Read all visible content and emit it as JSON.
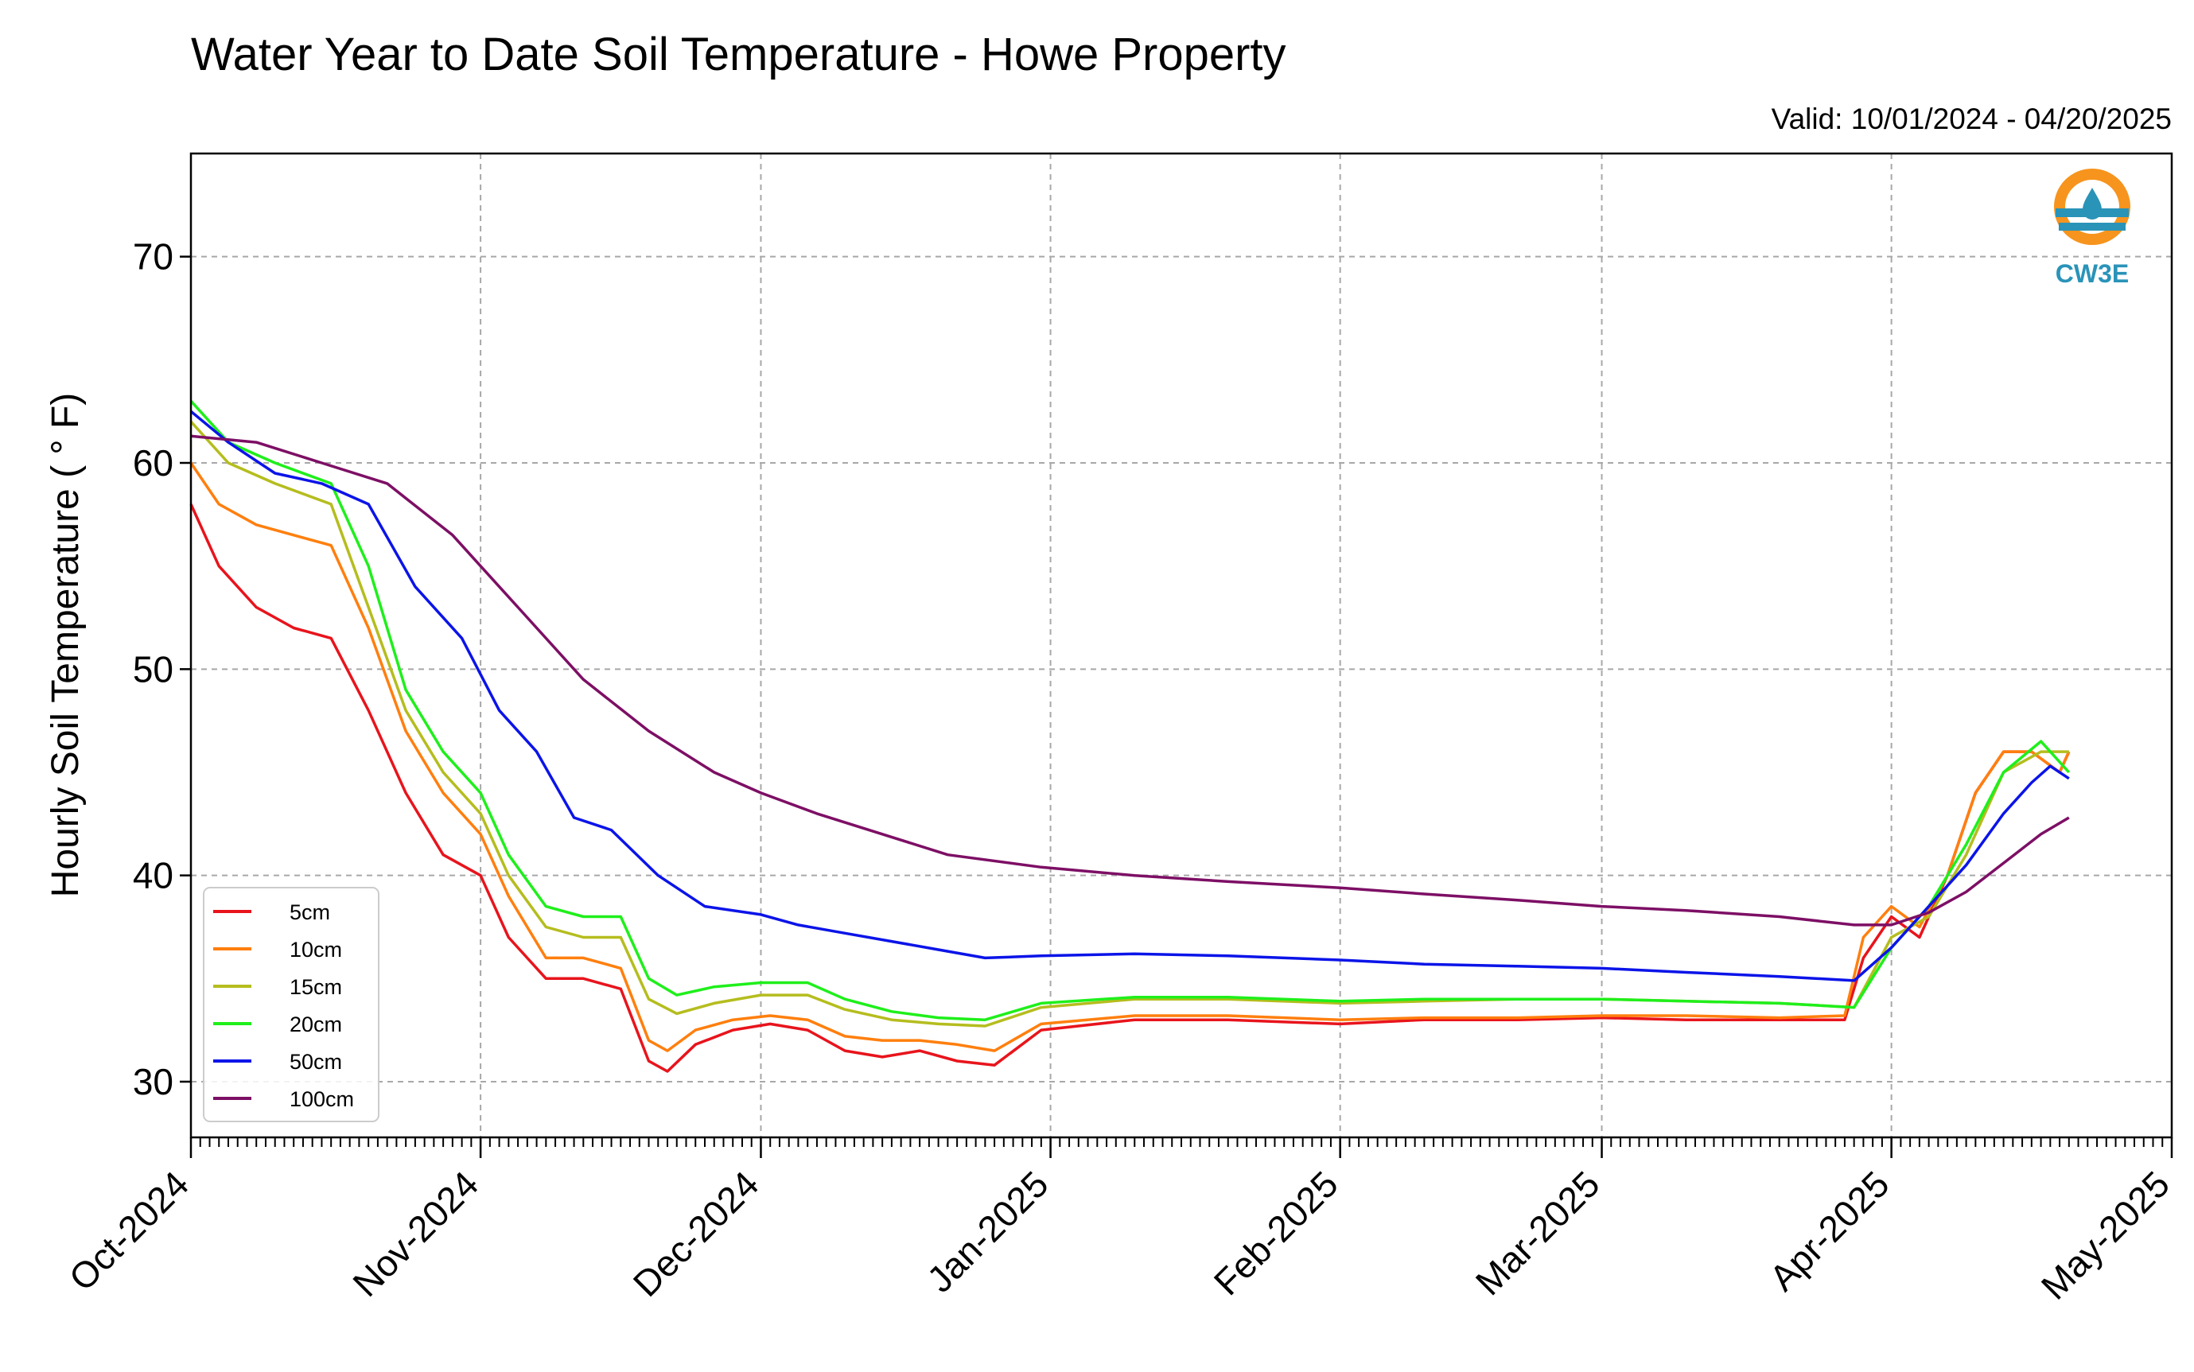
{
  "chart_data": {
    "type": "line",
    "title": "Water Year to Date Soil Temperature - Howe Property",
    "subtitle": "Valid: 10/01/2024 - 04/20/2025",
    "xlabel": "",
    "ylabel": "Hourly Soil Temperature ( ° F)",
    "logo_text": "CW3E",
    "x_ticks": [
      "Oct-2024",
      "Nov-2024",
      "Dec-2024",
      "Jan-2025",
      "Feb-2025",
      "Mar-2025",
      "Apr-2025",
      "May-2025"
    ],
    "y_ticks": [
      30,
      40,
      50,
      60,
      70
    ],
    "xlim": [
      "2024-10-01",
      "2025-05-01"
    ],
    "ylim": [
      27.3,
      75
    ],
    "grid": true,
    "legend_position": "lower-left",
    "series": [
      {
        "name": "5cm",
        "color": "#e8141c",
        "x": [
          "2024-10-01",
          "2024-10-04",
          "2024-10-08",
          "2024-10-12",
          "2024-10-16",
          "2024-10-20",
          "2024-10-24",
          "2024-10-28",
          "2024-11-01",
          "2024-11-04",
          "2024-11-08",
          "2024-11-12",
          "2024-11-16",
          "2024-11-19",
          "2024-11-21",
          "2024-11-24",
          "2024-11-28",
          "2024-12-02",
          "2024-12-06",
          "2024-12-10",
          "2024-12-14",
          "2024-12-18",
          "2024-12-22",
          "2024-12-26",
          "2024-12-31",
          "2025-01-10",
          "2025-01-20",
          "2025-02-01",
          "2025-02-10",
          "2025-02-20",
          "2025-03-01",
          "2025-03-10",
          "2025-03-20",
          "2025-03-27",
          "2025-03-29",
          "2025-04-01",
          "2025-04-04",
          "2025-04-07",
          "2025-04-10",
          "2025-04-13",
          "2025-04-16",
          "2025-04-19",
          "2025-04-20"
        ],
        "y": [
          58,
          55,
          53,
          52,
          51.5,
          48,
          44,
          41,
          40,
          37,
          35,
          35,
          34.5,
          31,
          30.5,
          31.8,
          32.5,
          32.8,
          32.5,
          31.5,
          31.2,
          31.5,
          31,
          30.8,
          32.5,
          33,
          33,
          32.8,
          33,
          33,
          33.1,
          33,
          33,
          33,
          36,
          38,
          37,
          40,
          44,
          46,
          46,
          45,
          46
        ]
      },
      {
        "name": "10cm",
        "color": "#ff7f0e",
        "x": [
          "2024-10-01",
          "2024-10-04",
          "2024-10-08",
          "2024-10-12",
          "2024-10-16",
          "2024-10-20",
          "2024-10-24",
          "2024-10-28",
          "2024-11-01",
          "2024-11-04",
          "2024-11-08",
          "2024-11-12",
          "2024-11-16",
          "2024-11-19",
          "2024-11-21",
          "2024-11-24",
          "2024-11-28",
          "2024-12-02",
          "2024-12-06",
          "2024-12-10",
          "2024-12-14",
          "2024-12-18",
          "2024-12-22",
          "2024-12-26",
          "2024-12-31",
          "2025-01-10",
          "2025-01-20",
          "2025-02-01",
          "2025-02-10",
          "2025-02-20",
          "2025-03-01",
          "2025-03-10",
          "2025-03-20",
          "2025-03-27",
          "2025-03-29",
          "2025-04-01",
          "2025-04-04",
          "2025-04-07",
          "2025-04-10",
          "2025-04-13",
          "2025-04-16",
          "2025-04-19",
          "2025-04-20"
        ],
        "y": [
          60,
          58,
          57,
          56.5,
          56,
          52,
          47,
          44,
          42,
          39,
          36,
          36,
          35.5,
          32,
          31.5,
          32.5,
          33,
          33.2,
          33,
          32.2,
          32,
          32,
          31.8,
          31.5,
          32.8,
          33.2,
          33.2,
          33,
          33.1,
          33.1,
          33.2,
          33.2,
          33.1,
          33.2,
          37,
          38.5,
          37.5,
          40,
          44,
          46,
          46,
          45,
          46
        ]
      },
      {
        "name": "15cm",
        "color": "#b5bd1e",
        "x": [
          "2024-10-01",
          "2024-10-05",
          "2024-10-10",
          "2024-10-16",
          "2024-10-20",
          "2024-10-24",
          "2024-10-28",
          "2024-11-01",
          "2024-11-04",
          "2024-11-08",
          "2024-11-12",
          "2024-11-16",
          "2024-11-19",
          "2024-11-22",
          "2024-11-26",
          "2024-12-01",
          "2024-12-06",
          "2024-12-10",
          "2024-12-15",
          "2024-12-20",
          "2024-12-25",
          "2024-12-31",
          "2025-01-10",
          "2025-01-20",
          "2025-02-01",
          "2025-02-10",
          "2025-02-20",
          "2025-03-01",
          "2025-03-10",
          "2025-03-20",
          "2025-03-28",
          "2025-04-01",
          "2025-04-05",
          "2025-04-09",
          "2025-04-13",
          "2025-04-17",
          "2025-04-20"
        ],
        "y": [
          62,
          60,
          59,
          58,
          53,
          48,
          45,
          43,
          40,
          37.5,
          37,
          37,
          34,
          33.3,
          33.8,
          34.2,
          34.2,
          33.5,
          33,
          32.8,
          32.7,
          33.6,
          34,
          34,
          33.8,
          33.9,
          34,
          34,
          33.9,
          33.8,
          33.6,
          37,
          38,
          41,
          45,
          46,
          46
        ]
      },
      {
        "name": "20cm",
        "color": "#1fef1b",
        "x": [
          "2024-10-01",
          "2024-10-05",
          "2024-10-10",
          "2024-10-16",
          "2024-10-20",
          "2024-10-24",
          "2024-10-28",
          "2024-11-01",
          "2024-11-04",
          "2024-11-08",
          "2024-11-12",
          "2024-11-16",
          "2024-11-19",
          "2024-11-22",
          "2024-11-26",
          "2024-12-01",
          "2024-12-06",
          "2024-12-10",
          "2024-12-15",
          "2024-12-20",
          "2024-12-25",
          "2024-12-31",
          "2025-01-10",
          "2025-01-20",
          "2025-02-01",
          "2025-02-10",
          "2025-02-20",
          "2025-03-01",
          "2025-03-10",
          "2025-03-20",
          "2025-03-28",
          "2025-04-01",
          "2025-04-05",
          "2025-04-09",
          "2025-04-13",
          "2025-04-17",
          "2025-04-20"
        ],
        "y": [
          63,
          61,
          60,
          59,
          55,
          49,
          46,
          44,
          41,
          38.5,
          38,
          38,
          35,
          34.2,
          34.6,
          34.8,
          34.8,
          34,
          33.4,
          33.1,
          33,
          33.8,
          34.1,
          34.1,
          33.9,
          34,
          34,
          34,
          33.9,
          33.8,
          33.6,
          36.5,
          38.5,
          41.5,
          45,
          46.5,
          45
        ]
      },
      {
        "name": "50cm",
        "color": "#0b14e8",
        "x": [
          "2024-10-01",
          "2024-10-05",
          "2024-10-10",
          "2024-10-15",
          "2024-10-20",
          "2024-10-25",
          "2024-10-30",
          "2024-11-03",
          "2024-11-07",
          "2024-11-11",
          "2024-11-15",
          "2024-11-20",
          "2024-11-25",
          "2024-12-01",
          "2024-12-05",
          "2024-12-10",
          "2024-12-15",
          "2024-12-20",
          "2024-12-25",
          "2024-12-31",
          "2025-01-10",
          "2025-01-20",
          "2025-02-01",
          "2025-02-10",
          "2025-02-20",
          "2025-03-01",
          "2025-03-10",
          "2025-03-20",
          "2025-03-28",
          "2025-04-01",
          "2025-04-05",
          "2025-04-09",
          "2025-04-13",
          "2025-04-16",
          "2025-04-18",
          "2025-04-20"
        ],
        "y": [
          62.5,
          61,
          59.5,
          59,
          58,
          54,
          51.5,
          48,
          46,
          42.8,
          42.2,
          40,
          38.5,
          38.1,
          37.6,
          37.2,
          36.8,
          36.4,
          36,
          36.1,
          36.2,
          36.1,
          35.9,
          35.7,
          35.6,
          35.5,
          35.3,
          35.1,
          34.9,
          36.5,
          38.5,
          40.5,
          43,
          44.5,
          45.3,
          44.7
        ]
      },
      {
        "name": "100cm",
        "color": "#7d0f65",
        "x": [
          "2024-10-01",
          "2024-10-08",
          "2024-10-15",
          "2024-10-22",
          "2024-10-29",
          "2024-11-05",
          "2024-11-12",
          "2024-11-19",
          "2024-11-26",
          "2024-12-01",
          "2024-12-07",
          "2024-12-14",
          "2024-12-21",
          "2024-12-31",
          "2025-01-10",
          "2025-01-20",
          "2025-02-01",
          "2025-02-10",
          "2025-02-20",
          "2025-03-01",
          "2025-03-10",
          "2025-03-20",
          "2025-03-28",
          "2025-04-01",
          "2025-04-05",
          "2025-04-09",
          "2025-04-13",
          "2025-04-17",
          "2025-04-20"
        ],
        "y": [
          61.3,
          61,
          60,
          59,
          56.5,
          53,
          49.5,
          47,
          45,
          44,
          43,
          42,
          41,
          40.4,
          40,
          39.7,
          39.4,
          39.1,
          38.8,
          38.5,
          38.3,
          38,
          37.6,
          37.6,
          38.2,
          39.2,
          40.6,
          42,
          42.8
        ]
      }
    ]
  }
}
